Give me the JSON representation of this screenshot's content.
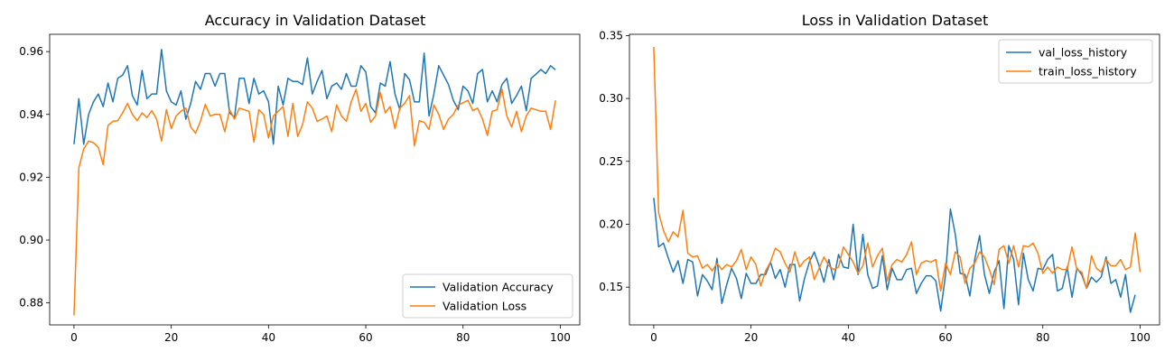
{
  "chart_data": [
    {
      "type": "line",
      "title": "Accuracy in Validation Dataset",
      "xlabel": "",
      "ylabel": "",
      "xlim": [
        -5,
        104
      ],
      "ylim": [
        0.873,
        0.9655
      ],
      "xticks": [
        0,
        20,
        40,
        60,
        80,
        100
      ],
      "yticks": [
        0.88,
        0.9,
        0.92,
        0.94,
        0.96
      ],
      "xtick_labels": [
        "0",
        "20",
        "40",
        "60",
        "80",
        "100"
      ],
      "ytick_labels": [
        "0.88",
        "0.90",
        "0.92",
        "0.94",
        "0.96"
      ],
      "grid": false,
      "legend_position": "lower-right",
      "series": [
        {
          "name": "Validation Accuracy",
          "color": "#1f77b4",
          "values": [
            0.9305,
            0.945,
            0.9305,
            0.94,
            0.944,
            0.9465,
            0.9425,
            0.95,
            0.944,
            0.9515,
            0.9525,
            0.9555,
            0.946,
            0.943,
            0.954,
            0.945,
            0.9465,
            0.9465,
            0.9607,
            0.9475,
            0.944,
            0.943,
            0.9475,
            0.9385,
            0.9435,
            0.9505,
            0.948,
            0.953,
            0.953,
            0.949,
            0.953,
            0.953,
            0.9405,
            0.939,
            0.9515,
            0.9515,
            0.9435,
            0.9515,
            0.9465,
            0.9475,
            0.944,
            0.9305,
            0.949,
            0.943,
            0.9515,
            0.9505,
            0.9505,
            0.9495,
            0.958,
            0.9465,
            0.9505,
            0.954,
            0.945,
            0.949,
            0.95,
            0.948,
            0.953,
            0.949,
            0.949,
            0.9555,
            0.9535,
            0.9425,
            0.9405,
            0.95,
            0.949,
            0.9568,
            0.9465,
            0.9415,
            0.953,
            0.951,
            0.944,
            0.944,
            0.9595,
            0.9395,
            0.9465,
            0.9555,
            0.9525,
            0.9495,
            0.9445,
            0.9415,
            0.949,
            0.9475,
            0.9435,
            0.953,
            0.9543,
            0.944,
            0.9475,
            0.944,
            0.9495,
            0.9515,
            0.9435,
            0.946,
            0.949,
            0.9412,
            0.9515,
            0.9528,
            0.9543,
            0.953,
            0.9555,
            0.9542
          ]
        },
        {
          "name": "Validation Loss",
          "color": "#ff7f0e",
          "values": [
            0.876,
            0.923,
            0.929,
            0.9315,
            0.931,
            0.9295,
            0.924,
            0.9365,
            0.9378,
            0.938,
            0.9405,
            0.9435,
            0.94,
            0.938,
            0.9405,
            0.939,
            0.9412,
            0.9385,
            0.9315,
            0.9415,
            0.9355,
            0.9395,
            0.941,
            0.942,
            0.936,
            0.934,
            0.9378,
            0.9432,
            0.9395,
            0.94,
            0.94,
            0.9345,
            0.9415,
            0.9385,
            0.942,
            0.9415,
            0.941,
            0.9312,
            0.9415,
            0.94,
            0.9325,
            0.9395,
            0.941,
            0.9425,
            0.933,
            0.9435,
            0.933,
            0.9368,
            0.944,
            0.942,
            0.9378,
            0.9385,
            0.9395,
            0.9345,
            0.943,
            0.9395,
            0.9378,
            0.944,
            0.948,
            0.941,
            0.9435,
            0.9375,
            0.9395,
            0.947,
            0.9405,
            0.9425,
            0.9355,
            0.942,
            0.9435,
            0.946,
            0.93,
            0.938,
            0.9375,
            0.9352,
            0.943,
            0.94,
            0.9352,
            0.9385,
            0.94,
            0.943,
            0.9437,
            0.9445,
            0.9412,
            0.942,
            0.9385,
            0.9333,
            0.941,
            0.9415,
            0.948,
            0.9395,
            0.936,
            0.941,
            0.9345,
            0.9395,
            0.942,
            0.9415,
            0.941,
            0.941,
            0.9352,
            0.9445
          ]
        }
      ]
    },
    {
      "type": "line",
      "title": "Loss in Validation Dataset",
      "xlabel": "",
      "ylabel": "",
      "xlim": [
        -5,
        104
      ],
      "ylim": [
        0.12,
        0.351
      ],
      "xticks": [
        0,
        20,
        40,
        60,
        80,
        100
      ],
      "yticks": [
        0.15,
        0.2,
        0.25,
        0.3,
        0.35
      ],
      "xtick_labels": [
        "0",
        "20",
        "40",
        "60",
        "80",
        "100"
      ],
      "ytick_labels": [
        "0.15",
        "0.20",
        "0.25",
        "0.30",
        "0.35"
      ],
      "grid": false,
      "legend_position": "top-right",
      "series": [
        {
          "name": "val_loss_history",
          "color": "#1f77b4",
          "values": [
            0.221,
            0.182,
            0.185,
            0.173,
            0.162,
            0.171,
            0.153,
            0.172,
            0.17,
            0.143,
            0.16,
            0.155,
            0.148,
            0.173,
            0.137,
            0.152,
            0.165,
            0.157,
            0.141,
            0.161,
            0.153,
            0.153,
            0.16,
            0.16,
            0.17,
            0.157,
            0.164,
            0.15,
            0.168,
            0.168,
            0.139,
            0.157,
            0.17,
            0.178,
            0.167,
            0.154,
            0.172,
            0.156,
            0.176,
            0.166,
            0.165,
            0.2,
            0.16,
            0.192,
            0.16,
            0.149,
            0.151,
            0.175,
            0.148,
            0.165,
            0.156,
            0.156,
            0.164,
            0.165,
            0.145,
            0.153,
            0.159,
            0.159,
            0.155,
            0.131,
            0.16,
            0.212,
            0.192,
            0.161,
            0.16,
            0.143,
            0.172,
            0.191,
            0.16,
            0.145,
            0.162,
            0.171,
            0.133,
            0.183,
            0.172,
            0.136,
            0.177,
            0.156,
            0.147,
            0.165,
            0.164,
            0.172,
            0.176,
            0.147,
            0.149,
            0.166,
            0.142,
            0.165,
            0.16,
            0.149,
            0.158,
            0.154,
            0.158,
            0.174,
            0.153,
            0.156,
            0.142,
            0.16,
            0.13,
            0.144
          ]
        },
        {
          "name": "train_loss_history",
          "color": "#ff7f0e",
          "values": [
            0.341,
            0.209,
            0.195,
            0.186,
            0.194,
            0.19,
            0.211,
            0.177,
            0.174,
            0.175,
            0.165,
            0.168,
            0.163,
            0.169,
            0.164,
            0.168,
            0.166,
            0.171,
            0.18,
            0.164,
            0.174,
            0.168,
            0.151,
            0.163,
            0.17,
            0.181,
            0.178,
            0.169,
            0.162,
            0.178,
            0.166,
            0.171,
            0.174,
            0.156,
            0.165,
            0.174,
            0.167,
            0.164,
            0.166,
            0.182,
            0.176,
            0.17,
            0.161,
            0.167,
            0.185,
            0.166,
            0.175,
            0.181,
            0.155,
            0.168,
            0.172,
            0.17,
            0.176,
            0.186,
            0.16,
            0.169,
            0.171,
            0.17,
            0.172,
            0.147,
            0.169,
            0.16,
            0.178,
            0.174,
            0.153,
            0.165,
            0.169,
            0.178,
            0.174,
            0.164,
            0.152,
            0.18,
            0.183,
            0.169,
            0.183,
            0.166,
            0.183,
            0.182,
            0.185,
            0.177,
            0.161,
            0.166,
            0.161,
            0.166,
            0.164,
            0.164,
            0.182,
            0.164,
            0.162,
            0.149,
            0.175,
            0.165,
            0.162,
            0.172,
            0.167,
            0.167,
            0.172,
            0.164,
            0.166,
            0.193,
            0.162
          ]
        }
      ]
    }
  ]
}
